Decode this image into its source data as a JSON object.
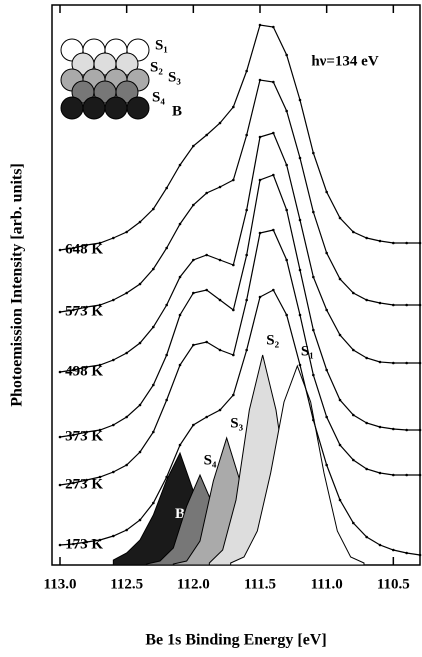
{
  "chart_data": {
    "type": "line",
    "x_label": "Be 1s Binding Energy [eV]",
    "y_label": "Photoemission Intensity [arb. units]",
    "annotation": "hν=134 eV",
    "xlim": [
      113.06,
      110.3
    ],
    "ylim": [
      0,
      56
    ],
    "xticks": [
      {
        "value": 113.0,
        "label": "113.0"
      },
      {
        "value": 112.5,
        "label": "112.5"
      },
      {
        "value": 112.0,
        "label": "112.0"
      },
      {
        "value": 111.5,
        "label": "111.5"
      },
      {
        "value": 111.0,
        "label": "111.0"
      },
      {
        "value": 110.5,
        "label": "110.5"
      }
    ],
    "x": [
      113.0,
      112.9,
      112.8,
      112.7,
      112.6,
      112.5,
      112.4,
      112.3,
      112.2,
      112.1,
      112.0,
      111.9,
      111.8,
      111.7,
      111.6,
      111.5,
      111.4,
      111.3,
      111.2,
      111.1,
      111.0,
      110.9,
      110.8,
      110.7,
      110.6,
      110.5,
      110.4,
      110.3
    ],
    "series": [
      {
        "name": "173 K",
        "color": "#000000",
        "values": [
          2.0,
          2.1,
          2.3,
          2.5,
          2.9,
          3.5,
          4.5,
          6.2,
          8.8,
          12.0,
          14.0,
          14.8,
          15.5,
          17.0,
          21.5,
          26.8,
          27.5,
          25.0,
          20.0,
          14.5,
          10.0,
          6.5,
          4.2,
          2.8,
          2.0,
          1.5,
          1.2,
          1.0
        ]
      },
      {
        "name": "273 K",
        "color": "#000000",
        "values": [
          8.0,
          8.2,
          8.5,
          8.8,
          9.3,
          10.0,
          11.3,
          13.3,
          16.5,
          20.0,
          22.0,
          22.3,
          21.5,
          21.0,
          26.5,
          33.2,
          33.5,
          30.5,
          25.0,
          19.0,
          14.8,
          12.0,
          10.5,
          9.6,
          9.2,
          9.0,
          9.0,
          9.0
        ]
      },
      {
        "name": "373 K",
        "color": "#000000",
        "values": [
          12.8,
          13.0,
          13.3,
          13.5,
          14.0,
          14.8,
          16.0,
          18.0,
          21.0,
          25.0,
          27.2,
          27.5,
          26.5,
          25.5,
          31.0,
          38.5,
          39.0,
          35.5,
          29.5,
          23.5,
          19.5,
          16.5,
          15.0,
          14.2,
          13.8,
          13.6,
          13.5,
          13.5
        ]
      },
      {
        "name": "498 K",
        "color": "#000000",
        "values": [
          19.3,
          19.5,
          19.8,
          20.0,
          20.5,
          21.2,
          22.2,
          23.8,
          26.0,
          28.8,
          30.5,
          31.0,
          30.5,
          30.0,
          35.5,
          42.8,
          43.2,
          40.0,
          34.5,
          28.8,
          25.5,
          23.0,
          21.5,
          20.7,
          20.3,
          20.2,
          20.2,
          20.2
        ]
      },
      {
        "name": "573 K",
        "color": "#000000",
        "values": [
          25.3,
          25.5,
          25.8,
          26.0,
          26.5,
          27.2,
          28.1,
          29.6,
          31.7,
          34.1,
          36.0,
          37.2,
          37.8,
          38.5,
          43.0,
          48.5,
          48.3,
          45.4,
          40.7,
          35.3,
          31.2,
          28.6,
          27.2,
          26.5,
          26.2,
          26.0,
          26.0,
          26.0
        ]
      },
      {
        "name": "648 K",
        "color": "#000000",
        "values": [
          31.5,
          31.7,
          32.0,
          32.2,
          32.7,
          33.3,
          34.3,
          35.6,
          37.7,
          40.0,
          41.9,
          43.0,
          44.2,
          45.8,
          49.4,
          54.0,
          53.8,
          51.0,
          46.5,
          41.2,
          37.3,
          34.7,
          33.3,
          32.7,
          32.4,
          32.2,
          32.2,
          32.2
        ]
      }
    ],
    "components": [
      {
        "name": "B",
        "color": "#1a1a1a",
        "x": [
          112.6,
          112.5,
          112.4,
          112.3,
          112.2,
          112.1,
          112.0,
          111.9,
          111.8
        ],
        "values": [
          0.5,
          1.2,
          2.5,
          5.0,
          8.5,
          11.2,
          7.4,
          2.1,
          0.3
        ]
      },
      {
        "name": "S₄",
        "color": "#777777",
        "x": [
          112.35,
          112.25,
          112.15,
          112.05,
          111.95,
          111.85,
          111.75,
          111.65,
          111.55
        ],
        "values": [
          0.1,
          0.4,
          1.7,
          5.9,
          9.0,
          5.9,
          1.7,
          0.2,
          0
        ]
      },
      {
        "name": "S₃",
        "color": "#aaaaaa",
        "x": [
          112.15,
          112.05,
          111.95,
          111.85,
          111.75,
          111.65,
          111.55,
          111.45,
          111.35
        ],
        "values": [
          0.1,
          0.4,
          2.4,
          8.4,
          12.7,
          8.4,
          2.4,
          0.4,
          0.1
        ]
      },
      {
        "name": "S₂",
        "color": "#dddddd",
        "x": [
          111.88,
          111.78,
          111.68,
          111.58,
          111.48,
          111.38,
          111.28,
          111.18,
          111.08
        ],
        "values": [
          0.2,
          1.5,
          6.5,
          15.5,
          21,
          15.5,
          6.5,
          1.5,
          0.2
        ]
      },
      {
        "name": "S₁",
        "color": "#ffffff",
        "x": [
          111.72,
          111.62,
          111.52,
          111.42,
          111.32,
          111.22,
          111.12,
          111.02,
          110.92,
          110.82,
          110.72
        ],
        "values": [
          0.2,
          0.8,
          3.4,
          9.2,
          16.3,
          19.9,
          16.3,
          9.2,
          3.4,
          0.8,
          0.2
        ]
      }
    ]
  },
  "inset": {
    "labels": [
      "S₁",
      "S₂",
      "S₃",
      "S₄",
      "B"
    ]
  }
}
